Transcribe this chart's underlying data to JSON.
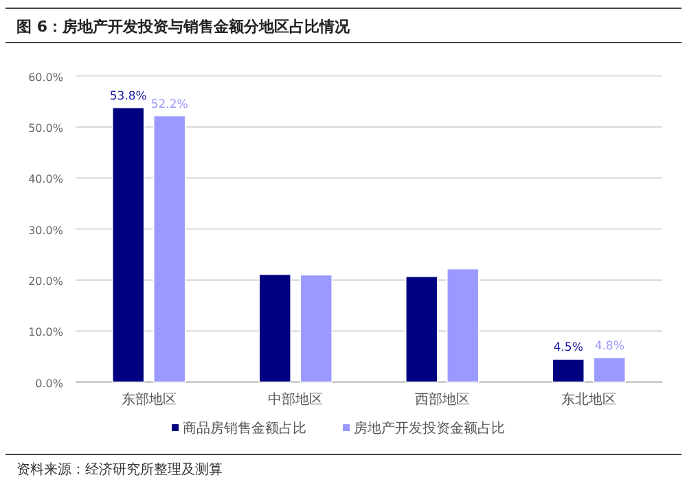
{
  "chart_data": {
    "type": "bar",
    "title": "图 6：房地产开发投资与销售金额分地区占比情况",
    "categories": [
      "东部地区",
      "中部地区",
      "西部地区",
      "东北地区"
    ],
    "series": [
      {
        "name": "商品房销售金额占比",
        "color": "#000080",
        "values": [
          53.8,
          21.1,
          20.7,
          4.5
        ],
        "value_labels": [
          "53.8%",
          null,
          null,
          "4.5%"
        ]
      },
      {
        "name": "房地产开发投资金额占比",
        "color": "#9999ff",
        "values": [
          52.2,
          21.0,
          22.2,
          4.8
        ],
        "value_labels": [
          "52.2%",
          null,
          null,
          "4.8%"
        ]
      }
    ],
    "ylim": [
      0,
      60
    ],
    "yticks": [
      {
        "value": 0,
        "label": "0.0%"
      },
      {
        "value": 10,
        "label": "10.0%"
      },
      {
        "value": 20,
        "label": "20.0%"
      },
      {
        "value": 30,
        "label": "30.0%"
      },
      {
        "value": 40,
        "label": "40.0%"
      },
      {
        "value": 50,
        "label": "50.0%"
      },
      {
        "value": 60,
        "label": "60.0%"
      }
    ],
    "grid": "y",
    "legend": "bottom",
    "annotations": [
      "资料来源：经济研究所整理及测算"
    ]
  }
}
